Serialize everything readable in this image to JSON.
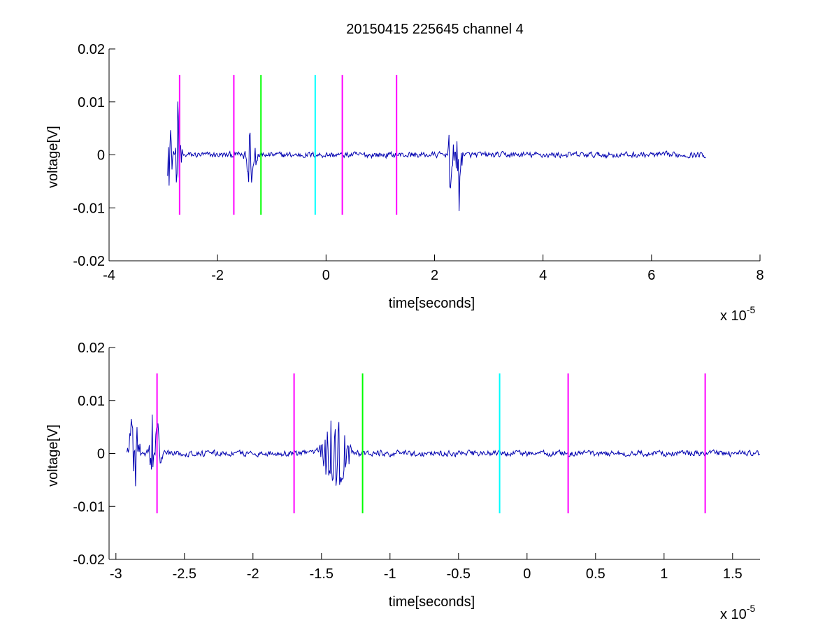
{
  "figure_title": "20150415 225645 channel 4",
  "chart_data": [
    {
      "type": "line",
      "xlabel": "time[seconds]",
      "ylabel": "voltage[V]",
      "x_multiplier": "x 10",
      "x_exponent": "-5",
      "xlim": [
        -4,
        8
      ],
      "ylim": [
        -0.02,
        0.02
      ],
      "x_ticks": [
        -4,
        -2,
        0,
        2,
        4,
        6,
        8
      ],
      "x_tick_labels": [
        "-4",
        "-2",
        "0",
        "2",
        "4",
        "6",
        "8"
      ],
      "y_ticks": [
        0.02,
        0.01,
        0,
        -0.01,
        -0.02
      ],
      "y_tick_labels": [
        "0.02",
        "0.01",
        "0",
        "-0.01",
        "-0.02"
      ],
      "grid": false,
      "series": [
        {
          "color": "#0000b0",
          "x_range": [
            -2.92,
            7.0
          ],
          "baseline": 0.0,
          "noise": 0.0005,
          "bursts": [
            {
              "x": -2.88,
              "width": 0.06,
              "amp": 0.0088
            },
            {
              "x": -2.72,
              "width": 0.06,
              "amp": 0.012
            },
            {
              "x": -1.4,
              "width": 0.15,
              "amp": 0.0055
            },
            {
              "x": 2.3,
              "width": 0.06,
              "amp": 0.0102
            },
            {
              "x": 2.45,
              "width": 0.06,
              "amp": 0.0135
            }
          ]
        }
      ],
      "markers": [
        {
          "x": -2.7,
          "color": "#ff00ff",
          "ymin": -0.0113,
          "ymax": 0.0151
        },
        {
          "x": -1.7,
          "color": "#ff00ff",
          "ymin": -0.0113,
          "ymax": 0.0151
        },
        {
          "x": -1.2,
          "color": "#00ff00",
          "ymin": -0.0113,
          "ymax": 0.0151
        },
        {
          "x": -0.2,
          "color": "#00ffff",
          "ymin": -0.0113,
          "ymax": 0.0151
        },
        {
          "x": 0.3,
          "color": "#ff00ff",
          "ymin": -0.0113,
          "ymax": 0.0151
        },
        {
          "x": 1.3,
          "color": "#ff00ff",
          "ymin": -0.0113,
          "ymax": 0.0151
        }
      ]
    },
    {
      "type": "line",
      "xlabel": "time[seconds]",
      "ylabel": "voltage[V]",
      "x_multiplier": "x 10",
      "x_exponent": "-5",
      "xlim": [
        -3.05,
        1.7
      ],
      "ylim": [
        -0.02,
        0.02
      ],
      "x_ticks": [
        -3,
        -2.5,
        -2,
        -1.5,
        -1,
        -0.5,
        0,
        0.5,
        1,
        1.5
      ],
      "x_tick_labels": [
        "-3",
        "-2.5",
        "-2",
        "-1.5",
        "-1",
        "-0.5",
        "0",
        "0.5",
        "1",
        "1.5"
      ],
      "y_ticks": [
        0.02,
        0.01,
        0,
        -0.01,
        -0.02
      ],
      "y_tick_labels": [
        "0.02",
        "0.01",
        "0",
        "-0.01",
        "-0.02"
      ],
      "grid": false,
      "series": [
        {
          "color": "#0000b0",
          "x_range": [
            -2.92,
            1.7
          ],
          "baseline": 0.0,
          "noise": 0.0005,
          "bursts": [
            {
              "x": -2.87,
              "width": 0.05,
              "amp": 0.0088
            },
            {
              "x": -2.72,
              "width": 0.05,
              "amp": 0.012
            },
            {
              "x": -1.4,
              "width": 0.12,
              "amp": 0.0075
            }
          ]
        }
      ],
      "markers": [
        {
          "x": -2.7,
          "color": "#ff00ff",
          "ymin": -0.0113,
          "ymax": 0.0151
        },
        {
          "x": -1.7,
          "color": "#ff00ff",
          "ymin": -0.0113,
          "ymax": 0.0151
        },
        {
          "x": -1.2,
          "color": "#00ff00",
          "ymin": -0.0113,
          "ymax": 0.0151
        },
        {
          "x": -0.2,
          "color": "#00ffff",
          "ymin": -0.0113,
          "ymax": 0.0151
        },
        {
          "x": 0.3,
          "color": "#ff00ff",
          "ymin": -0.0113,
          "ymax": 0.0151
        },
        {
          "x": 1.3,
          "color": "#ff00ff",
          "ymin": -0.0113,
          "ymax": 0.0151
        }
      ]
    }
  ]
}
